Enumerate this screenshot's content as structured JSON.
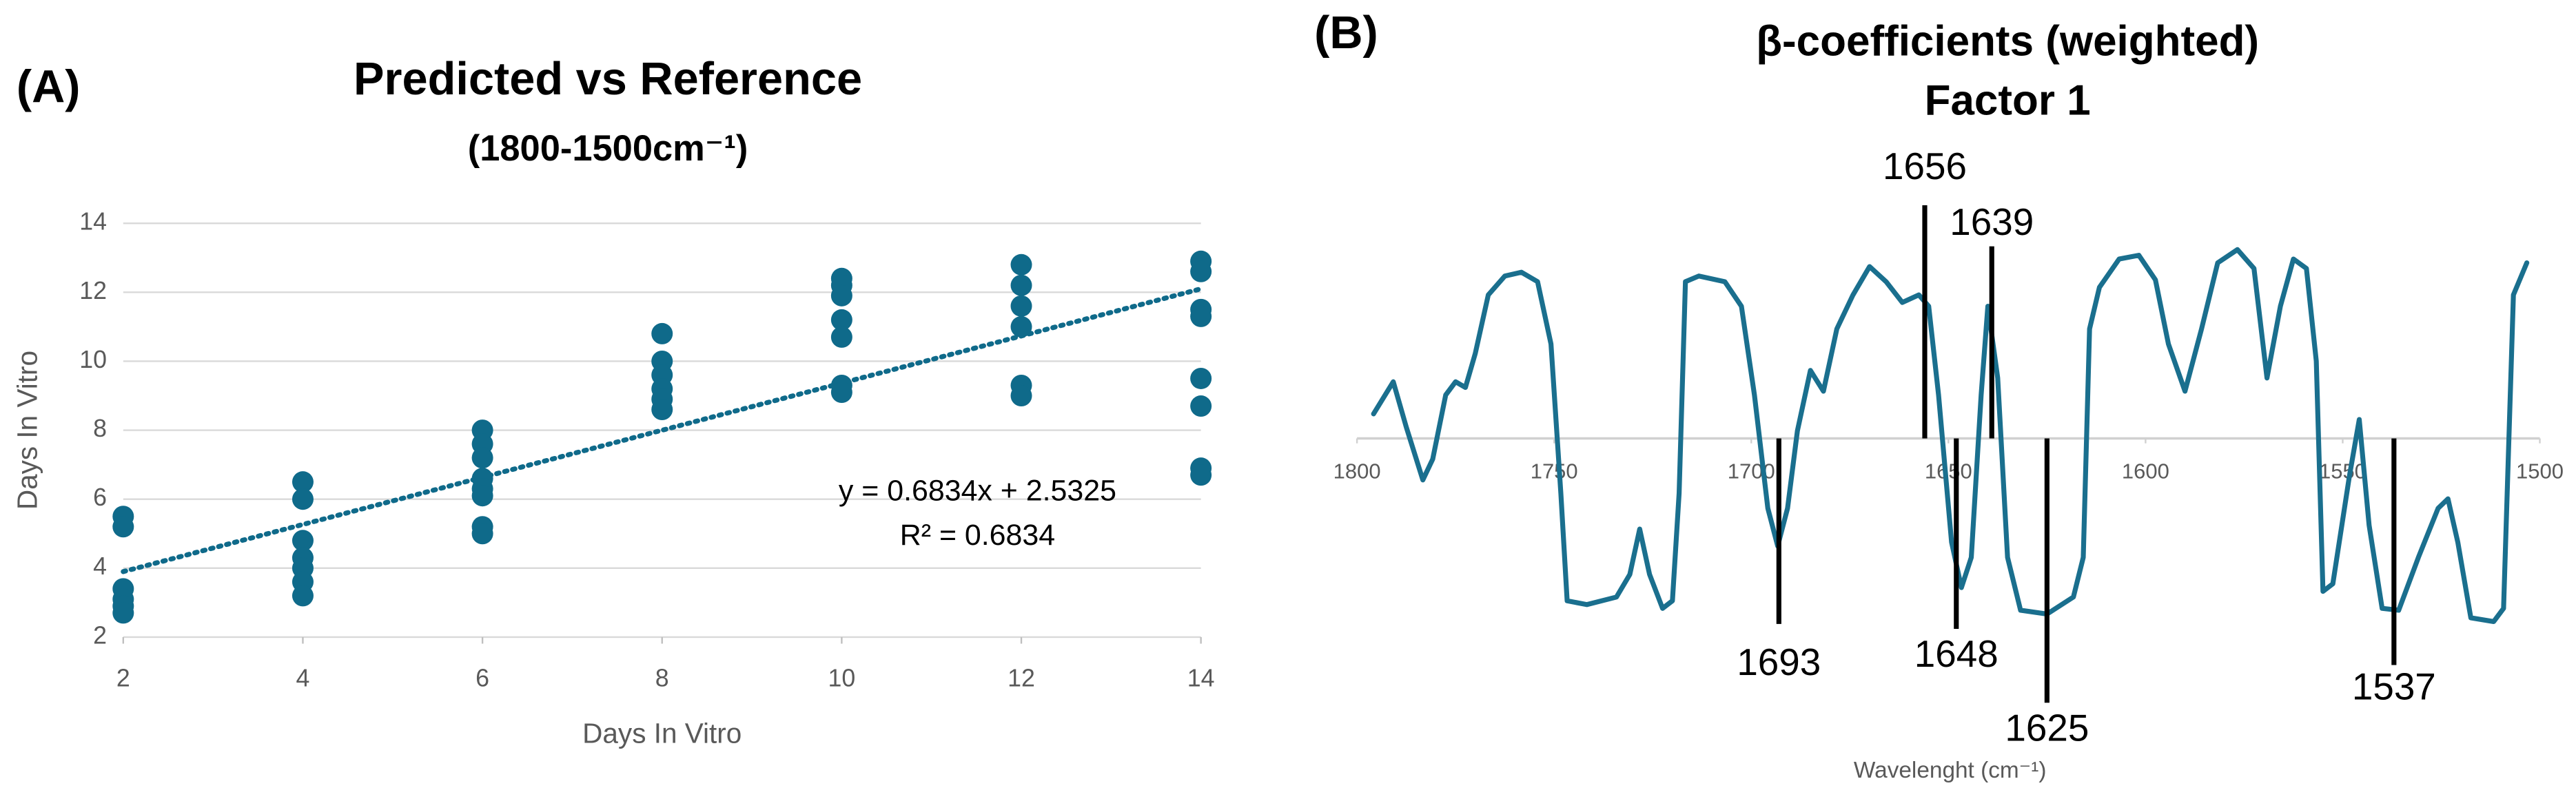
{
  "chart_data": [
    {
      "type": "scatter",
      "panel": "(A)",
      "title": "Predicted vs Reference",
      "subtitle": "(1800-1500cm⁻¹)",
      "xlabel": "Days In Vitro",
      "ylabel": "Days In Vitro",
      "color": "#0f6a8a",
      "grid": true,
      "xlim": [
        2,
        14
      ],
      "xticks": [
        2,
        4,
        6,
        8,
        10,
        12,
        14
      ],
      "ylim": [
        2,
        14
      ],
      "yticks": [
        2,
        4,
        6,
        8,
        10,
        12,
        14
      ],
      "x": [
        2,
        2,
        2,
        2,
        2,
        2,
        4,
        4,
        4,
        4,
        4,
        4,
        4,
        6,
        6,
        6,
        6,
        6,
        6,
        6,
        6,
        8,
        8,
        8,
        8,
        8,
        8,
        10,
        10,
        10,
        10,
        10,
        10,
        10,
        12,
        12,
        12,
        12,
        12,
        12,
        14,
        14,
        14,
        14,
        14,
        14,
        14,
        14
      ],
      "values": [
        5.5,
        5.2,
        3.4,
        3.1,
        2.9,
        2.7,
        6.5,
        6.0,
        4.8,
        4.3,
        4.0,
        3.6,
        3.2,
        8.0,
        7.6,
        7.2,
        6.6,
        6.3,
        6.1,
        5.2,
        5.0,
        10.8,
        10.0,
        9.6,
        9.2,
        8.9,
        8.6,
        12.4,
        12.2,
        11.9,
        11.2,
        10.7,
        9.3,
        9.1,
        12.8,
        12.2,
        11.6,
        11.0,
        9.3,
        9.0,
        12.9,
        12.6,
        11.5,
        11.3,
        9.5,
        8.7,
        6.9,
        6.7
      ],
      "trendline": {
        "slope": 0.6834,
        "intercept": 2.5325
      },
      "annotations": [
        "y = 0.6834x + 2.5325",
        "R² = 0.6834"
      ]
    },
    {
      "type": "line",
      "panel": "(B)",
      "title": "β-coefficients (weighted)",
      "subtitle": "Factor 1",
      "xlabel": "Wavelenght (cm⁻¹)",
      "color": "#1a6f8e",
      "xlim": [
        1800,
        1500
      ],
      "xticks": [
        1800,
        1750,
        1700,
        1650,
        1600,
        1550,
        1500
      ],
      "ylim": [
        -1.2,
        1.2
      ],
      "x": [
        1795.8,
        1790.8,
        1787.5,
        1783.3,
        1780.8,
        1777.5,
        1775,
        1772.5,
        1770,
        1766.7,
        1762.5,
        1758.3,
        1754.2,
        1750.8,
        1748.3,
        1746.7,
        1741.7,
        1734.2,
        1730.8,
        1728.3,
        1725.8,
        1722.5,
        1720,
        1718.3,
        1716.7,
        1713.3,
        1706.7,
        1702.5,
        1699.2,
        1695.8,
        1693.3,
        1690.8,
        1688.3,
        1685,
        1681.7,
        1678.3,
        1674.2,
        1670,
        1665.8,
        1661.7,
        1657.5,
        1655,
        1652.5,
        1649.2,
        1646.7,
        1644.2,
        1641.7,
        1640,
        1637.5,
        1635,
        1631.7,
        1625,
        1618.3,
        1615.8,
        1614.2,
        1611.7,
        1606.7,
        1601.7,
        1597.5,
        1594.2,
        1590,
        1585.8,
        1581.7,
        1576.7,
        1572.5,
        1569.2,
        1565.8,
        1562.5,
        1559.2,
        1556.7,
        1555,
        1552.5,
        1548.3,
        1545.8,
        1543.3,
        1540,
        1535.8,
        1530.8,
        1525.8,
        1523.3,
        1520.8,
        1517.5,
        1511.7,
        1509.2,
        1506.7,
        1503.3
      ],
      "values": [
        0.13,
        0.3,
        0.06,
        -0.22,
        -0.11,
        0.23,
        0.3,
        0.27,
        0.45,
        0.76,
        0.86,
        0.88,
        0.83,
        0.5,
        -0.29,
        -0.86,
        -0.88,
        -0.84,
        -0.72,
        -0.48,
        -0.72,
        -0.9,
        -0.86,
        -0.29,
        0.83,
        0.86,
        0.83,
        0.7,
        0.23,
        -0.37,
        -0.57,
        -0.37,
        0.04,
        0.36,
        0.25,
        0.58,
        0.76,
        0.91,
        0.83,
        0.72,
        0.76,
        0.7,
        0.23,
        -0.55,
        -0.79,
        -0.63,
        0.23,
        0.7,
        0.32,
        -0.63,
        -0.91,
        -0.93,
        -0.84,
        -0.63,
        0.58,
        0.8,
        0.95,
        0.97,
        0.84,
        0.5,
        0.25,
        0.58,
        0.93,
        1.0,
        0.9,
        0.32,
        0.7,
        0.95,
        0.9,
        0.41,
        -0.81,
        -0.77,
        -0.2,
        0.1,
        -0.46,
        -0.9,
        -0.91,
        -0.63,
        -0.37,
        -0.32,
        -0.55,
        -0.95,
        -0.97,
        -0.9,
        0.76,
        0.93
      ],
      "markers": [
        1656,
        1639,
        1693,
        1648,
        1625,
        1537
      ]
    }
  ]
}
